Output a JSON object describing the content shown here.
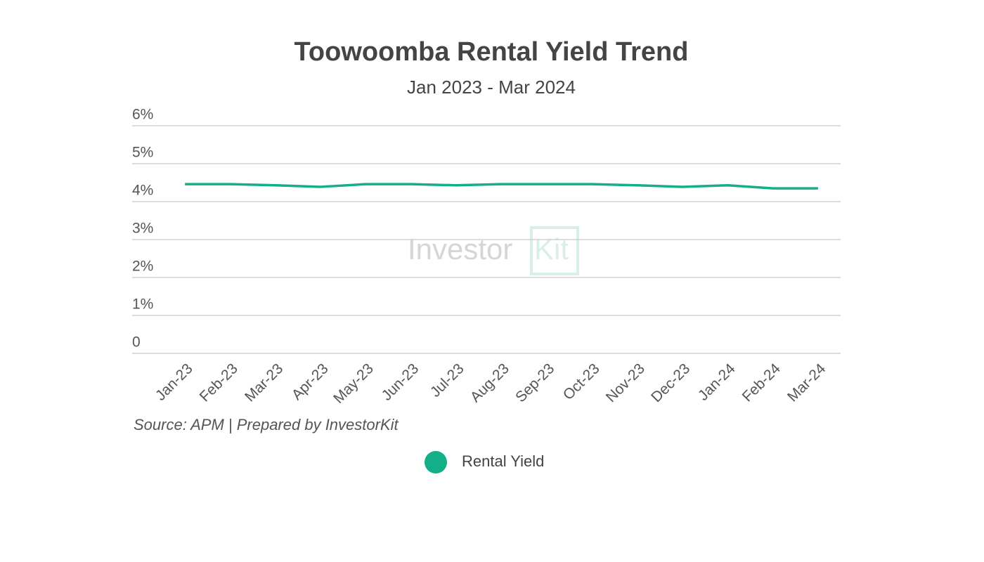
{
  "chart_data": {
    "type": "line",
    "title": "Toowoomba Rental Yield Trend",
    "subtitle": "Jan 2023 - Mar 2024",
    "annotation": "Source: APM | Prepared by InvestorKit",
    "watermark": [
      "Investor",
      "Kit"
    ],
    "categories": [
      "Jan-23",
      "Feb-23",
      "Mar-23",
      "Apr-23",
      "May-23",
      "Jun-23",
      "Jul-23",
      "Aug-23",
      "Sep-23",
      "Oct-23",
      "Nov-23",
      "Dec-23",
      "Jan-24",
      "Feb-24",
      "Mar-24"
    ],
    "series": [
      {
        "name": "Rental Yield",
        "color": "#14ae88",
        "values": [
          4.46,
          4.46,
          4.43,
          4.39,
          4.46,
          4.46,
          4.43,
          4.46,
          4.46,
          4.46,
          4.43,
          4.39,
          4.43,
          4.35,
          4.35
        ]
      }
    ],
    "ylim": [
      0,
      6
    ],
    "yticks": [
      0,
      {
        "value": 1,
        "label": "1%"
      },
      {
        "value": 2,
        "label": "2%"
      },
      {
        "value": 3,
        "label": "3%"
      },
      {
        "value": 4,
        "label": "4%"
      },
      {
        "value": 5,
        "label": "5%"
      },
      {
        "value": 6,
        "label": "6%"
      }
    ],
    "grid": true,
    "legend": "bottom"
  }
}
